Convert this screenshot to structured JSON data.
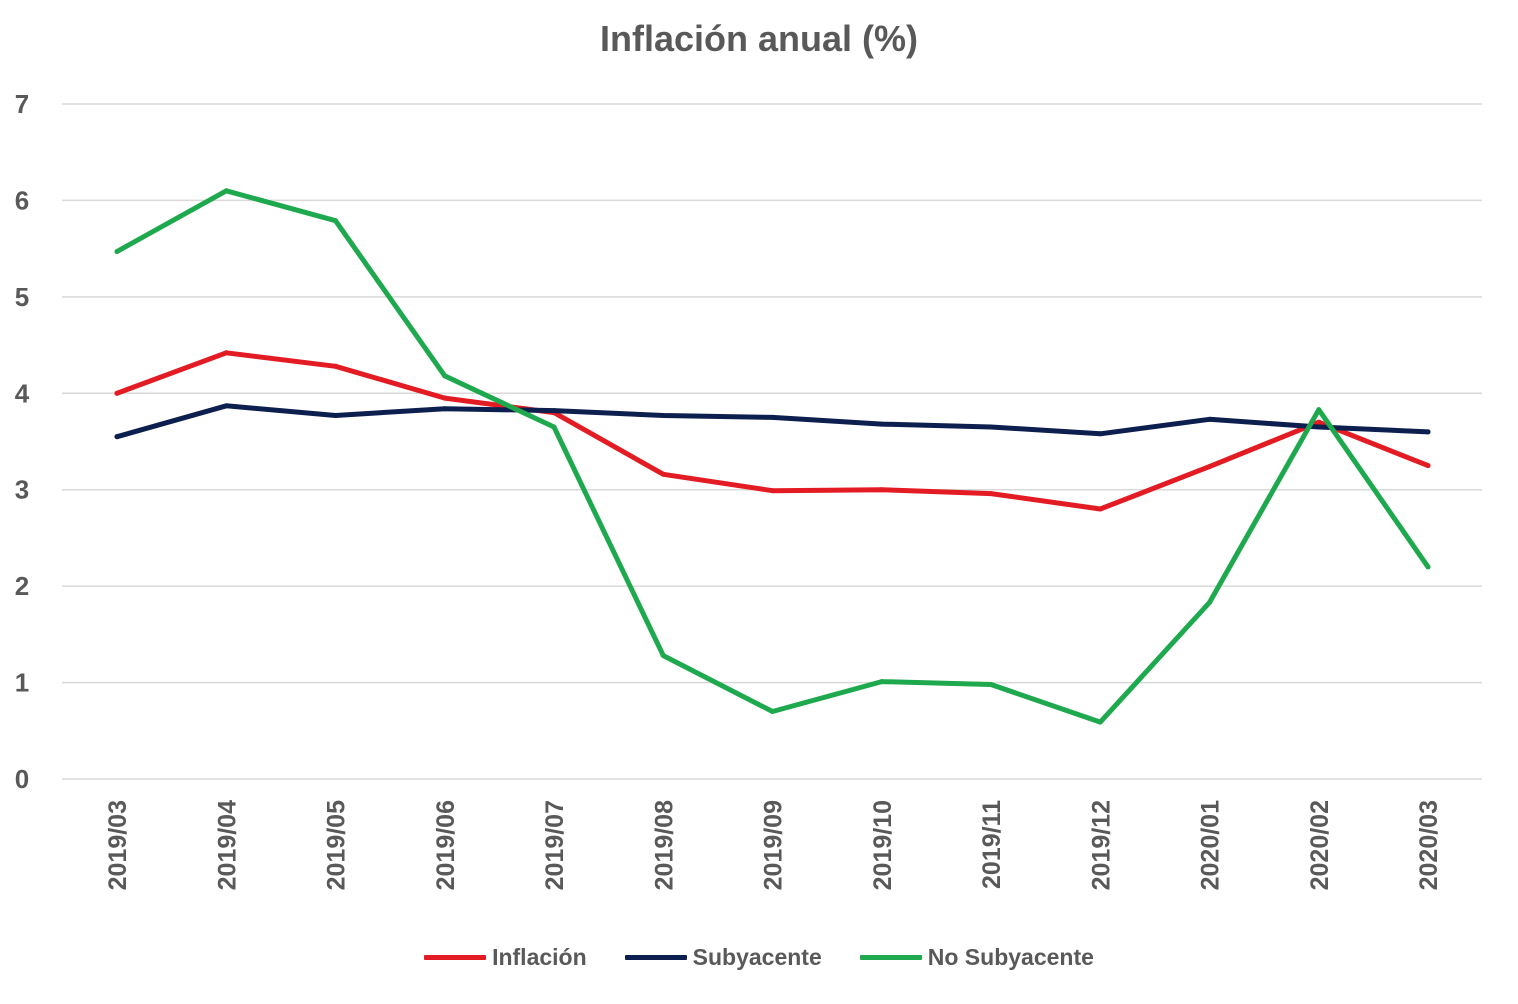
{
  "chart_data": {
    "type": "line",
    "title": "Inflación anual (%)",
    "xlabel": "",
    "ylabel": "",
    "categories": [
      "2019/03",
      "2019/04",
      "2019/05",
      "2019/06",
      "2019/07",
      "2019/08",
      "2019/09",
      "2019/10",
      "2019/11",
      "2019/12",
      "2020/01",
      "2020/02",
      "2020/03"
    ],
    "yticks": [
      "0",
      "1",
      "2",
      "3",
      "4",
      "5",
      "6",
      "7"
    ],
    "ylim": [
      0,
      7
    ],
    "grid": true,
    "legend_position": "bottom",
    "series": [
      {
        "name": "Inflación",
        "color": "#e31b23",
        "values": [
          4.0,
          4.42,
          4.28,
          3.95,
          3.8,
          3.16,
          2.99,
          3.0,
          2.96,
          2.8,
          3.24,
          3.7,
          3.25
        ]
      },
      {
        "name": "Subyacente",
        "color": "#0d1f4f",
        "values": [
          3.55,
          3.87,
          3.77,
          3.84,
          3.82,
          3.77,
          3.75,
          3.68,
          3.65,
          3.58,
          3.73,
          3.65,
          3.6
        ]
      },
      {
        "name": "No Subyacente",
        "color": "#1fa94f",
        "values": [
          5.47,
          6.1,
          5.79,
          4.18,
          3.65,
          1.28,
          0.7,
          1.01,
          0.98,
          0.59,
          1.83,
          3.83,
          2.2
        ]
      }
    ]
  }
}
